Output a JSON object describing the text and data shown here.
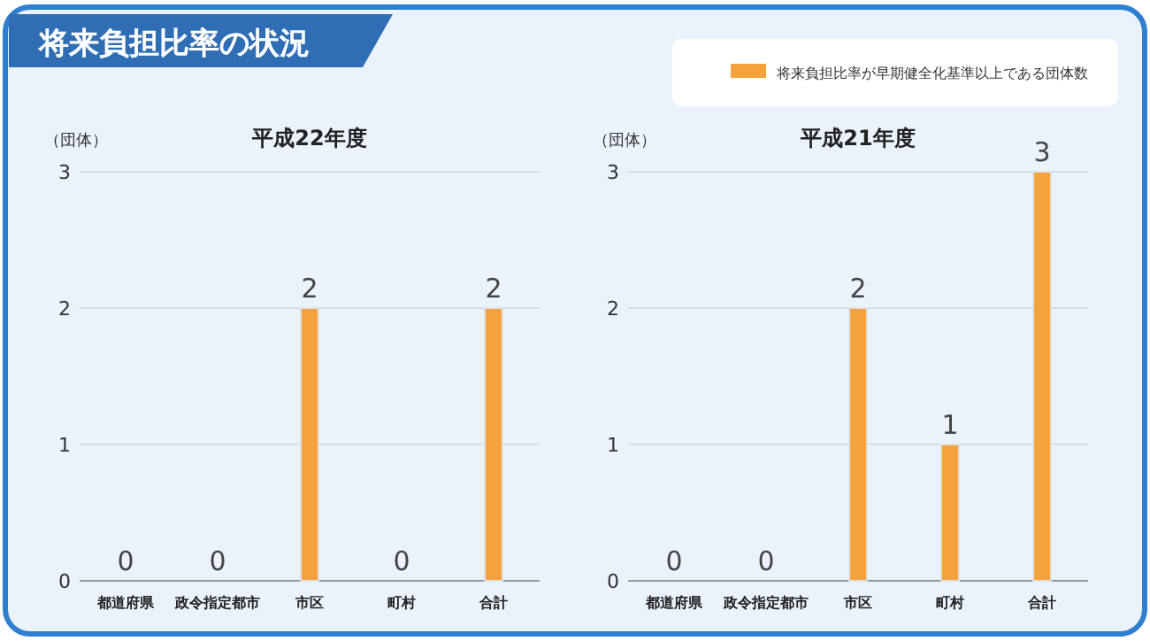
{
  "chart_data": [
    {
      "type": "other",
      "title": "将来負担比率の状況"
    },
    {
      "type": "bar",
      "title": "平成22年度",
      "ylabel": "（団体）",
      "categories": [
        "都道府県",
        "政令指定都市",
        "市区",
        "町村",
        "合計"
      ],
      "series": [
        {
          "color": "#f4a33c",
          "values": [
            0,
            0,
            2,
            0,
            2
          ]
        }
      ],
      "ylim": [
        0,
        3
      ],
      "yticks": [
        0,
        1,
        2,
        3
      ],
      "grid": "y",
      "data_labels": true
    },
    {
      "type": "bar",
      "title": "平成21年度",
      "ylabel": "（団体）",
      "categories": [
        "都道府県",
        "政令指定都市",
        "市区",
        "町村",
        "合計"
      ],
      "series": [
        {
          "name": "将来負担比率が早期健全化基準以上である団体数",
          "color": "#f4a33c",
          "values": [
            0,
            0,
            2,
            1,
            3
          ]
        }
      ],
      "ylim": [
        0,
        3
      ],
      "yticks": [
        0,
        1,
        2,
        3
      ],
      "grid": "y",
      "data_labels": true,
      "legend": "top right"
    }
  ]
}
